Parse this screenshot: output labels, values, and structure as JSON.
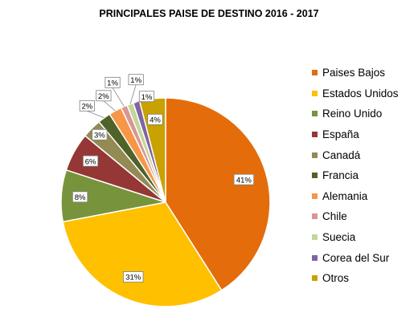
{
  "chart_data": {
    "type": "pie",
    "title": "PRINCIPALES PAISE DE DESTINO 2016 - 2017",
    "legend_position": "right",
    "slices": [
      {
        "label": "Paises Bajos",
        "value": 41,
        "display": "41%",
        "color": "#E46C0A"
      },
      {
        "label": "Estados Unidos",
        "value": 31,
        "display": "31%",
        "color": "#FFC000"
      },
      {
        "label": "Reino Unido",
        "value": 8,
        "display": "8%",
        "color": "#77933C"
      },
      {
        "label": "España",
        "value": 6,
        "display": "6%",
        "color": "#953735"
      },
      {
        "label": "Canadá",
        "value": 3,
        "display": "3%",
        "color": "#948A54"
      },
      {
        "label": "Francia",
        "value": 2,
        "display": "2%",
        "color": "#4F6228"
      },
      {
        "label": "Alemania",
        "value": 2,
        "display": "2%",
        "color": "#F79646"
      },
      {
        "label": "Chile",
        "value": 1,
        "display": "1%",
        "color": "#D99694"
      },
      {
        "label": "Suecia",
        "value": 1,
        "display": "1%",
        "color": "#C3D69B"
      },
      {
        "label": "Corea del Sur",
        "value": 1,
        "display": "1%",
        "color": "#8064A2"
      },
      {
        "label": "Otros",
        "value": 4,
        "display": "4%",
        "color": "#C9A100"
      }
    ]
  }
}
